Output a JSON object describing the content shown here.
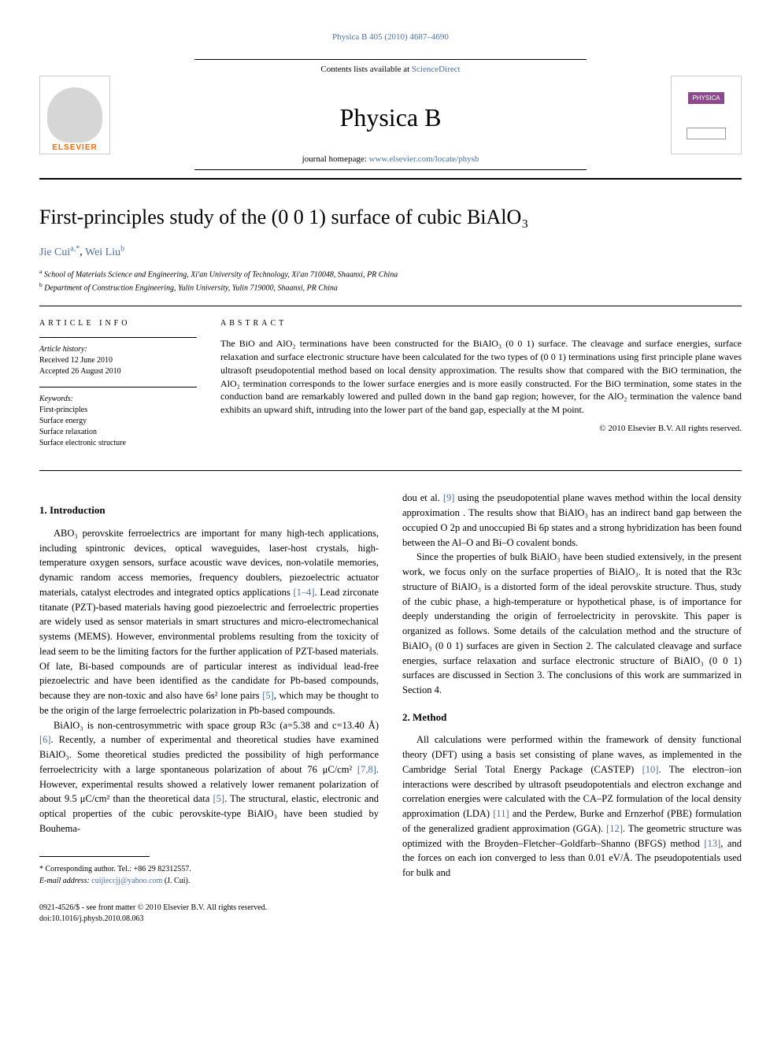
{
  "journal_ref": {
    "name": "Physica B",
    "vol_pages": "405 (2010) 4687–4690"
  },
  "masthead": {
    "elsevier": "ELSEVIER",
    "contents": "Contents lists available at ",
    "contents_link": "ScienceDirect",
    "journal_title": "Physica B",
    "homepage_label": "journal homepage: ",
    "homepage_url": "www.elsevier.com/locate/physb",
    "cover_text": "PHYSICA"
  },
  "title": "First-principles study of the (0 0 1) surface of cubic BiAlO₃",
  "authors": {
    "a1_name": "Jie Cui",
    "a1_aff": "a,",
    "a1_corr": "*",
    "a2_name": "Wei Liu",
    "a2_aff": "b"
  },
  "affiliations": {
    "a": "School of Materials Science and Engineering, Xi'an University of Technology, Xi'an 710048, Shaanxi, PR China",
    "b": "Department of Construction Engineering, Yulin University, Yulin 719000, Shaanxi, PR China"
  },
  "article_info": {
    "label": "ARTICLE INFO",
    "history_label": "Article history:",
    "received": "Received 12 June 2010",
    "accepted": "Accepted 26 August 2010",
    "keywords_label": "Keywords:",
    "kw1": "First-principles",
    "kw2": "Surface energy",
    "kw3": "Surface relaxation",
    "kw4": "Surface electronic structure"
  },
  "abstract": {
    "label": "ABSTRACT",
    "text": "The BiO and AlO₂ terminations have been constructed for the BiAlO₃ (0 0 1) surface. The cleavage and surface energies, surface relaxation and surface electronic structure have been calculated for the two types of (0 0 1) terminations using first principle plane waves ultrasoft pseudopotential method based on local density approximation. The results show that compared with the BiO termination, the AlO₂ termination corresponds to the lower surface energies and is more easily constructed. For the BiO termination, some states in the conduction band are remarkably lowered and pulled down in the band gap region; however, for the AlO₂ termination the valence band exhibits an upward shift, intruding into the lower part of the band gap, especially at the M point.",
    "copyright": "© 2010 Elsevier B.V. All rights reserved."
  },
  "sections": {
    "intro_heading": "1. Introduction",
    "method_heading": "2. Method"
  },
  "body": {
    "p1": "ABO₃ perovskite ferroelectrics are important for many high-tech applications, including spintronic devices, optical waveguides, laser-host crystals, high-temperature oxygen sensors, surface acoustic wave devices, non-volatile memories, dynamic random access memories, frequency doublers, piezoelectric actuator materials, catalyst electrodes and integrated optics applications ",
    "p1_ref": "[1–4]",
    "p1b": ". Lead zirconate titanate (PZT)-based materials having good piezoelectric and ferroelectric properties are widely used as sensor materials in smart structures and micro-electromechanical systems (MEMS). However, environmental problems resulting from the toxicity of lead seem to be the limiting factors for the further application of PZT-based materials. Of late, Bi-based compounds are of particular interest as individual lead-free piezoelectric and have been identified as the candidate for Pb-based compounds, because they are non-toxic and also have 6s² lone pairs ",
    "p1_ref2": "[5]",
    "p1c": ", which may be thought to be the origin of the large ferroelectric polarization in Pb-based compounds.",
    "p2a": "BiAlO₃ is non-centrosymmetric with space group R3c (a=5.38 and c=13.40 Å) ",
    "p2_ref": "[6]",
    "p2b": ". Recently, a number of experimental and theoretical studies have examined BiAlO₃. Some theoretical studies predicted the possibility of high performance ferroelectricity with a large spontaneous polarization of about 76 μC/cm² ",
    "p2_ref2": "[7,8]",
    "p2c": ". However, experimental results showed a relatively lower remanent polarization of about 9.5 μC/cm² than the theoretical data ",
    "p2_ref3": "[5]",
    "p2d": ". The structural, elastic, electronic and optical properties of the cubic perovskite-type BiAlO₃ have been studied by Bouhema-",
    "p3a": "dou et al. ",
    "p3_ref": "[9]",
    "p3b": " using the pseudopotential plane waves method within the local density approximation . The results show that BiAlO₃ has an indirect band gap between the occupied O 2p and unoccupied Bi 6p states and a strong hybridization has been found between the Al–O and Bi–O covalent bonds.",
    "p4": "Since the properties of bulk BiAlO₃ have been studied extensively, in the present work, we focus only on the surface properties of BiAlO₃. It is noted that the R3c structure of BiAlO₃ is a distorted form of the ideal perovskite structure. Thus, study of the cubic phase, a high-temperature or hypothetical phase, is of importance for deeply understanding the origin of ferroelectricity in perovskite. This paper is organized as follows. Some details of the calculation method and the structure of BiAlO₃ (0 0 1) surfaces are given in Section 2. The calculated cleavage and surface energies, surface relaxation and surface electronic structure of BiAlO₃ (0 0 1) surfaces are discussed in Section 3. The conclusions of this work are summarized in Section 4.",
    "p5a": "All calculations were performed within the framework of density functional theory (DFT) using a basis set consisting of plane waves, as implemented in the Cambridge Serial Total Energy Package (CASTEP) ",
    "p5_ref": "[10]",
    "p5b": ". The electron–ion interactions were described by ultrasoft pseudopotentials and electron exchange and correlation energies were calculated with the CA–PZ formulation of the local density approximation (LDA) ",
    "p5_ref2": "[11]",
    "p5c": " and the Perdew, Burke and Ernzerhof (PBE) formulation of the generalized gradient approximation (GGA). ",
    "p5_ref3": "[12]",
    "p5d": ". The geometric structure was optimized with the Broyden–Fletcher–Goldfarb–Shanno (BFGS) method ",
    "p5_ref4": "[13]",
    "p5e": ", and the forces on each ion converged to less than 0.01 eV/Å. The pseudopotentials used for bulk and"
  },
  "footnote": {
    "corr": "* Corresponding author. Tel.: +86 29 82312557.",
    "email_label": "E-mail address: ",
    "email": "cuijieccjj@yahoo.com",
    "email_suffix": " (J. Cui)."
  },
  "footer": {
    "line1": "0921-4526/$ - see front matter © 2010 Elsevier B.V. All rights reserved.",
    "line2": "doi:10.1016/j.physb.2010.08.063"
  },
  "colors": {
    "link": "#4a6fa5",
    "elsevier_orange": "#ff6600",
    "physica_purple": "#8b4a8b"
  }
}
